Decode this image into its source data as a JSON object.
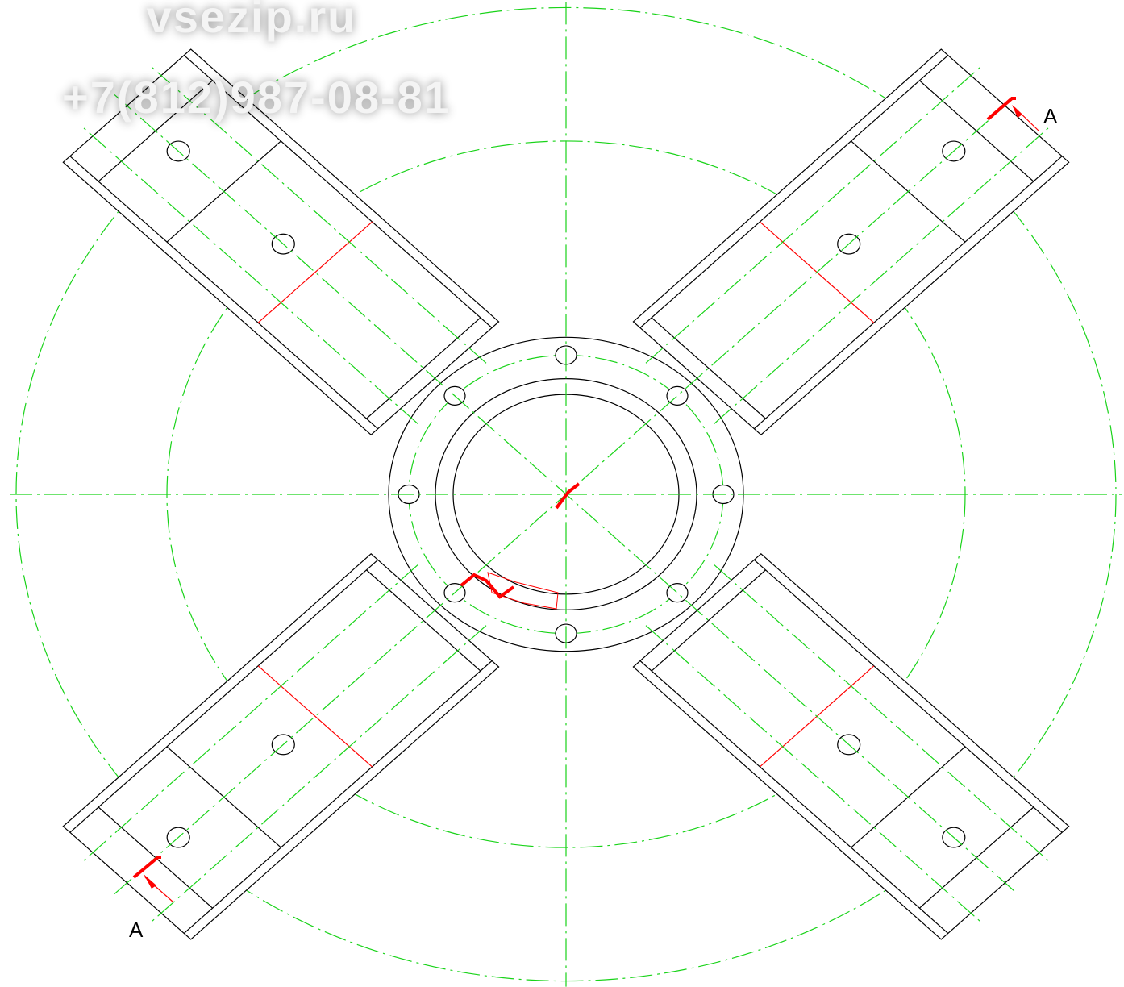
{
  "watermark": {
    "site": "vsezip.ru",
    "phone": "+7(812)987-08-81"
  },
  "section_labels": [
    "A",
    "A"
  ]
}
